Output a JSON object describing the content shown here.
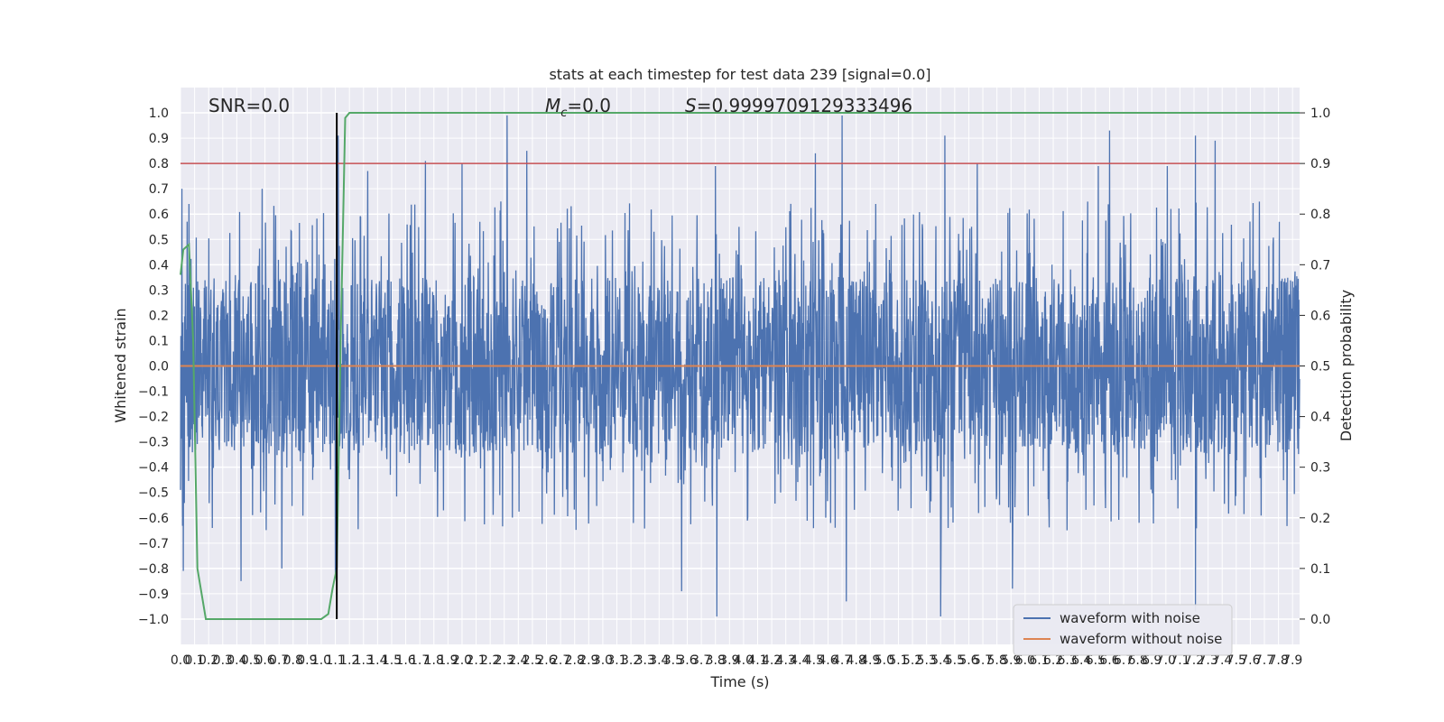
{
  "chart_data": {
    "type": "line",
    "title": "stats at each timestep for test data 239 [signal=0.0]",
    "xlabel": "Time (s)",
    "ylabel": "Whitened strain",
    "y2label": "Detection probability",
    "xlim": [
      0.0,
      7.95
    ],
    "ylim": [
      -1.1,
      1.1
    ],
    "y2lim": [
      -0.05,
      1.05
    ],
    "x_step": 0.1,
    "yticks": [
      -1.0,
      -0.9,
      -0.8,
      -0.7,
      -0.6,
      -0.5,
      -0.4,
      -0.3,
      -0.2,
      -0.1,
      0.0,
      0.1,
      0.2,
      0.3,
      0.4,
      0.5,
      0.6,
      0.7,
      0.8,
      0.9,
      1.0
    ],
    "y2ticks": [
      0.0,
      0.1,
      0.2,
      0.3,
      0.4,
      0.5,
      0.6,
      0.7,
      0.8,
      0.9,
      1.0
    ],
    "grid": true,
    "legend_position": "bottom-right",
    "annotations": {
      "snr": "SNR=0.0",
      "mc_symbol": "M",
      "mc_sub": "c",
      "mc_value": "=0.0",
      "s_symbol": "S",
      "s_value": "=0.9999709129333496"
    },
    "threshold": {
      "value": 0.9,
      "color": "#c44e52"
    },
    "marker_time": 1.11,
    "series": [
      {
        "name": "waveform with noise",
        "color": "#4c72b0",
        "kind": "noise",
        "peaks": [
          {
            "x": 0.01,
            "y": 0.7
          },
          {
            "x": 0.02,
            "y": -0.81
          },
          {
            "x": 0.06,
            "y": 0.64
          },
          {
            "x": 0.43,
            "y": -0.85
          },
          {
            "x": 0.58,
            "y": 0.7
          },
          {
            "x": 0.72,
            "y": -0.8
          },
          {
            "x": 1.12,
            "y": 0.91
          },
          {
            "x": 1.1,
            "y": -0.82
          },
          {
            "x": 1.33,
            "y": 0.77
          },
          {
            "x": 1.74,
            "y": 0.81
          },
          {
            "x": 2.0,
            "y": 0.8
          },
          {
            "x": 2.32,
            "y": 0.99
          },
          {
            "x": 2.46,
            "y": 0.85
          },
          {
            "x": 3.8,
            "y": 0.79
          },
          {
            "x": 3.81,
            "y": -0.99
          },
          {
            "x": 3.56,
            "y": -0.89
          },
          {
            "x": 4.51,
            "y": 0.84
          },
          {
            "x": 4.7,
            "y": 0.99
          },
          {
            "x": 4.73,
            "y": -0.93
          },
          {
            "x": 5.4,
            "y": -0.99
          },
          {
            "x": 5.43,
            "y": 0.91
          },
          {
            "x": 5.66,
            "y": 0.8
          },
          {
            "x": 5.91,
            "y": -0.88
          },
          {
            "x": 6.52,
            "y": 0.79
          },
          {
            "x": 6.6,
            "y": 0.93
          },
          {
            "x": 7.01,
            "y": 0.79
          },
          {
            "x": 7.21,
            "y": 0.91
          },
          {
            "x": 7.21,
            "y": -0.97
          },
          {
            "x": 7.35,
            "y": 0.89
          }
        ]
      },
      {
        "name": "waveform without noise",
        "color": "#dd8452",
        "x": [
          0.0,
          7.95
        ],
        "y": [
          0.0,
          0.0
        ]
      },
      {
        "name": "detection probability",
        "color": "#55a868",
        "axis": "right",
        "x": [
          0.0,
          0.02,
          0.06,
          0.09,
          0.12,
          0.18,
          0.3,
          0.6,
          1.0,
          1.05,
          1.08,
          1.11,
          1.14,
          1.17,
          1.2,
          1.3,
          7.95
        ],
        "y": [
          0.68,
          0.73,
          0.74,
          0.55,
          0.1,
          0.0,
          0.0,
          0.0,
          0.0,
          0.01,
          0.06,
          0.1,
          0.58,
          0.99,
          1.0,
          1.0,
          1.0
        ]
      }
    ]
  }
}
